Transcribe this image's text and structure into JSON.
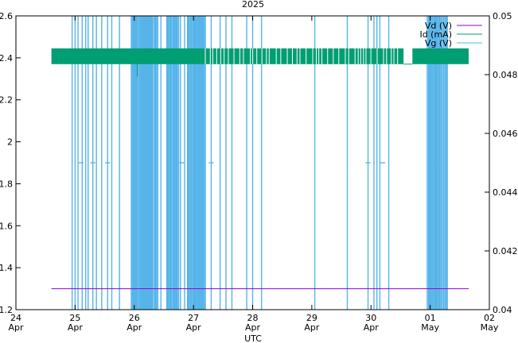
{
  "chart_data": {
    "type": "line",
    "title": "2025",
    "xlabel": "UTC",
    "x_ticks": [
      {
        "day": "24",
        "month": "Apr",
        "pos": 0
      },
      {
        "day": "25",
        "month": "Apr",
        "pos": 1
      },
      {
        "day": "26",
        "month": "Apr",
        "pos": 2
      },
      {
        "day": "27",
        "month": "Apr",
        "pos": 3
      },
      {
        "day": "28",
        "month": "Apr",
        "pos": 4
      },
      {
        "day": "29",
        "month": "Apr",
        "pos": 5
      },
      {
        "day": "30",
        "month": "Apr",
        "pos": 6
      },
      {
        "day": "01",
        "month": "May",
        "pos": 7
      },
      {
        "day": "02",
        "month": "May",
        "pos": 8
      }
    ],
    "xlim": [
      0,
      8
    ],
    "y_left": {
      "lim": [
        1.2,
        2.6
      ],
      "ticks": [
        "1.2",
        "1.4",
        "1.6",
        "1.8",
        "2",
        "2.2",
        "2.4",
        "2.6"
      ]
    },
    "y_right": {
      "lim": [
        0.04,
        0.05
      ],
      "ticks": [
        "0.04",
        "0.042",
        "0.044",
        "0.046",
        "0.048",
        "0.05"
      ]
    },
    "legend": {
      "position": "top-right",
      "entries": [
        "Vd (V)",
        "Id (mA)",
        "Vg (V)"
      ]
    },
    "series": [
      {
        "name": "Vd (V)",
        "axis": "left",
        "color": "#9400d3",
        "x_range": [
          0.6,
          7.65
        ],
        "value": 1.3
      },
      {
        "name": "Id (mA)",
        "axis": "left",
        "color": "#009e73",
        "x_range": [
          0.6,
          7.65
        ],
        "band": [
          2.37,
          2.445
        ],
        "gaps": [
          6.55,
          6.7
        ]
      },
      {
        "name": "Vg (V)",
        "axis": "right",
        "color": "#56b4e9",
        "x_range": [
          0.9,
          7.3
        ],
        "levels": [
          0.04,
          0.05,
          0.045
        ]
      }
    ]
  }
}
